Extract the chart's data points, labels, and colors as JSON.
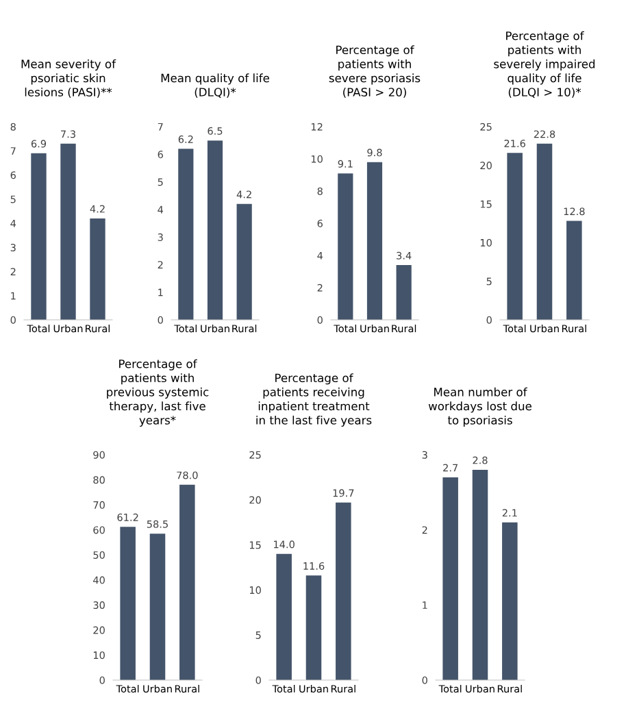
{
  "chart_data": [
    {
      "type": "bar",
      "title": "Mean severity of\npsoriatic skin\nlesions (PASI)**",
      "categories": [
        "Total",
        "Urban",
        "Rural"
      ],
      "values": [
        6.9,
        7.3,
        4.2
      ],
      "value_labels": [
        "6.9",
        "7.3",
        "4.2"
      ],
      "color": "#44546a",
      "ylim": [
        0,
        8
      ],
      "yticks": [
        0,
        1,
        2,
        3,
        4,
        5,
        6,
        7,
        8
      ]
    },
    {
      "type": "bar",
      "title": "Mean quality of life\n(DLQI)*",
      "categories": [
        "Total",
        "Urban",
        "Rural"
      ],
      "values": [
        6.2,
        6.5,
        4.2
      ],
      "value_labels": [
        "6.2",
        "6.5",
        "4.2"
      ],
      "color": "#44546a",
      "ylim": [
        0,
        7
      ],
      "yticks": [
        0,
        1,
        2,
        3,
        4,
        5,
        6,
        7
      ]
    },
    {
      "type": "bar",
      "title": "Percentage of\npatients with\nsevere psoriasis\n(PASI > 20)",
      "categories": [
        "Total",
        "Urban",
        "Rural"
      ],
      "values": [
        9.1,
        9.8,
        3.4
      ],
      "value_labels": [
        "9.1",
        "9.8",
        "3.4"
      ],
      "color": "#44546a",
      "ylim": [
        0,
        12
      ],
      "yticks": [
        0,
        2,
        4,
        6,
        8,
        10,
        12
      ]
    },
    {
      "type": "bar",
      "title": "Percentage of\npatients with\nseverely impaired\nquality of life\n(DLQI > 10)*",
      "categories": [
        "Total",
        "Urban",
        "Rural"
      ],
      "values": [
        21.6,
        22.8,
        12.8
      ],
      "value_labels": [
        "21.6",
        "22.8",
        "12.8"
      ],
      "color": "#44546a",
      "ylim": [
        0,
        25
      ],
      "yticks": [
        0,
        5,
        10,
        15,
        20,
        25
      ]
    },
    {
      "type": "bar",
      "title": "Percentage of\npatients with\nprevious systemic\ntherapy, last five\nyears*",
      "categories": [
        "Total",
        "Urban",
        "Rural"
      ],
      "values": [
        61.2,
        58.5,
        78.0
      ],
      "value_labels": [
        "61.2",
        "58.5",
        "78.0"
      ],
      "color": "#44546a",
      "ylim": [
        0,
        90
      ],
      "yticks": [
        0,
        10,
        20,
        30,
        40,
        50,
        60,
        70,
        80,
        90
      ]
    },
    {
      "type": "bar",
      "title": "Percentage of\npatients receiving\ninpatient treatment\nin the last five years",
      "categories": [
        "Total",
        "Urban",
        "Rural"
      ],
      "values": [
        14.0,
        11.6,
        19.7
      ],
      "value_labels": [
        "14.0",
        "11.6",
        "19.7"
      ],
      "color": "#44546a",
      "ylim": [
        0,
        25
      ],
      "yticks": [
        0,
        5,
        10,
        15,
        20,
        25
      ]
    },
    {
      "type": "bar",
      "title": "Mean number of\nworkdays lost due\nto psoriasis",
      "categories": [
        "Total",
        "Urban",
        "Rural"
      ],
      "values": [
        2.7,
        2.8,
        2.1
      ],
      "value_labels": [
        "2.7",
        "2.8",
        "2.1"
      ],
      "color": "#44546a",
      "ylim": [
        0,
        3
      ],
      "yticks": [
        0,
        1,
        2,
        3
      ]
    }
  ]
}
